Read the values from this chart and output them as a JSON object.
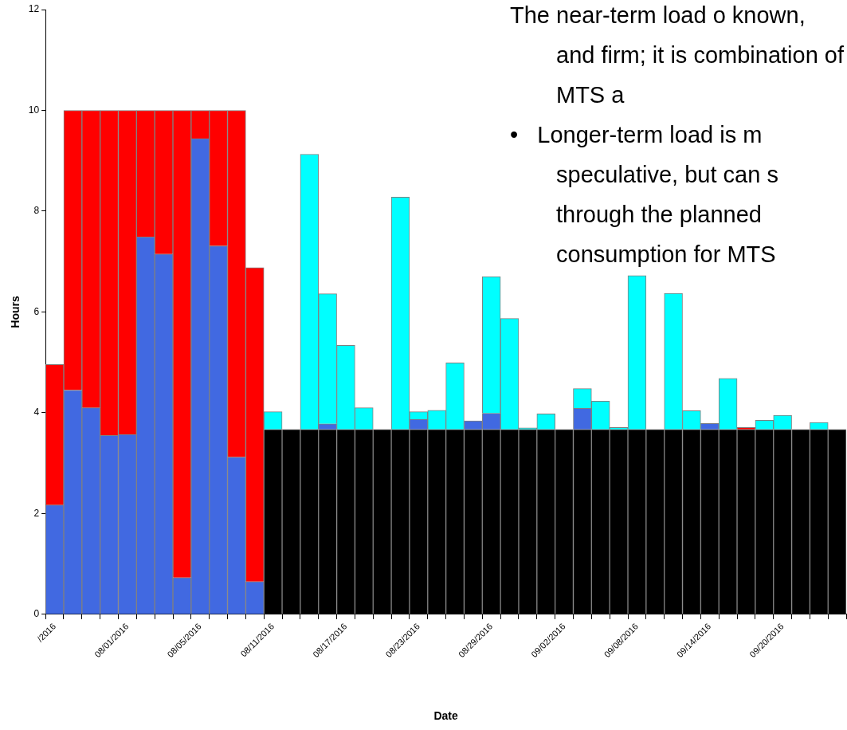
{
  "chart_data": {
    "type": "bar",
    "stacked": true,
    "xlabel": "Date",
    "ylabel": "Hours",
    "categories": [
      "/2016",
      null,
      null,
      null,
      "08/01/2016",
      null,
      null,
      null,
      "08/05/2016",
      null,
      null,
      null,
      "08/11/2016",
      null,
      null,
      null,
      "08/17/2016",
      null,
      null,
      null,
      "08/23/2016",
      null,
      null,
      null,
      "08/29/2016",
      null,
      null,
      null,
      "09/02/2016",
      null,
      null,
      null,
      "09/08/2016",
      null,
      null,
      null,
      "09/14/2016",
      null,
      null,
      null,
      "09/20/2016",
      null,
      null,
      null
    ],
    "series": [
      {
        "color": "#000000",
        "values": [
          null,
          null,
          null,
          null,
          null,
          null,
          null,
          null,
          null,
          null,
          null,
          null,
          3.67,
          3.67,
          3.67,
          3.67,
          3.67,
          3.67,
          3.67,
          3.67,
          3.67,
          3.67,
          3.67,
          3.67,
          3.67,
          3.67,
          3.67,
          3.67,
          3.67,
          3.67,
          3.67,
          3.67,
          3.67,
          3.67,
          3.67,
          3.67,
          3.67,
          3.67,
          3.67,
          3.67,
          3.67,
          3.67,
          3.67,
          3.67
        ]
      },
      {
        "color": "#4169e1",
        "values": [
          2.17,
          4.45,
          4.1,
          3.55,
          3.57,
          7.49,
          7.15,
          0.73,
          9.44,
          7.31,
          3.12,
          0.65,
          null,
          null,
          null,
          0.11,
          null,
          null,
          null,
          null,
          0.2,
          null,
          null,
          0.17,
          0.32,
          null,
          null,
          null,
          null,
          0.42,
          null,
          null,
          null,
          null,
          null,
          null,
          0.12,
          null,
          null,
          null,
          null,
          null,
          null,
          null
        ]
      },
      {
        "color": "#ff0000",
        "values": [
          2.79,
          5.55,
          5.9,
          6.45,
          6.43,
          2.51,
          2.85,
          9.27,
          0.56,
          2.69,
          6.88,
          6.23,
          null,
          null,
          null,
          null,
          null,
          null,
          null,
          null,
          null,
          null,
          null,
          null,
          null,
          null,
          null,
          null,
          null,
          null,
          null,
          null,
          null,
          null,
          null,
          null,
          null,
          null,
          0.04,
          null,
          null,
          null,
          null,
          null
        ]
      },
      {
        "color": "#00ffff",
        "values": [
          null,
          null,
          null,
          null,
          null,
          null,
          null,
          null,
          null,
          null,
          null,
          null,
          0.35,
          null,
          5.46,
          2.58,
          1.67,
          0.43,
          null,
          4.61,
          0.15,
          0.38,
          1.32,
          null,
          2.71,
          2.2,
          0.03,
          0.31,
          null,
          0.39,
          0.56,
          0.04,
          3.05,
          null,
          2.7,
          0.37,
          null,
          1.01,
          null,
          0.18,
          0.28,
          null,
          0.14,
          null
        ]
      }
    ],
    "ylim": [
      0,
      12
    ],
    "yticks": [
      0,
      2,
      4,
      6,
      8,
      10,
      12
    ],
    "grid": false,
    "legend": false,
    "annotations": [
      "The near-term load o known, and firm; it is combination of MTS a",
      "•   Longer-term load is m speculative, but can s through the planned consumption for MTS"
    ]
  }
}
